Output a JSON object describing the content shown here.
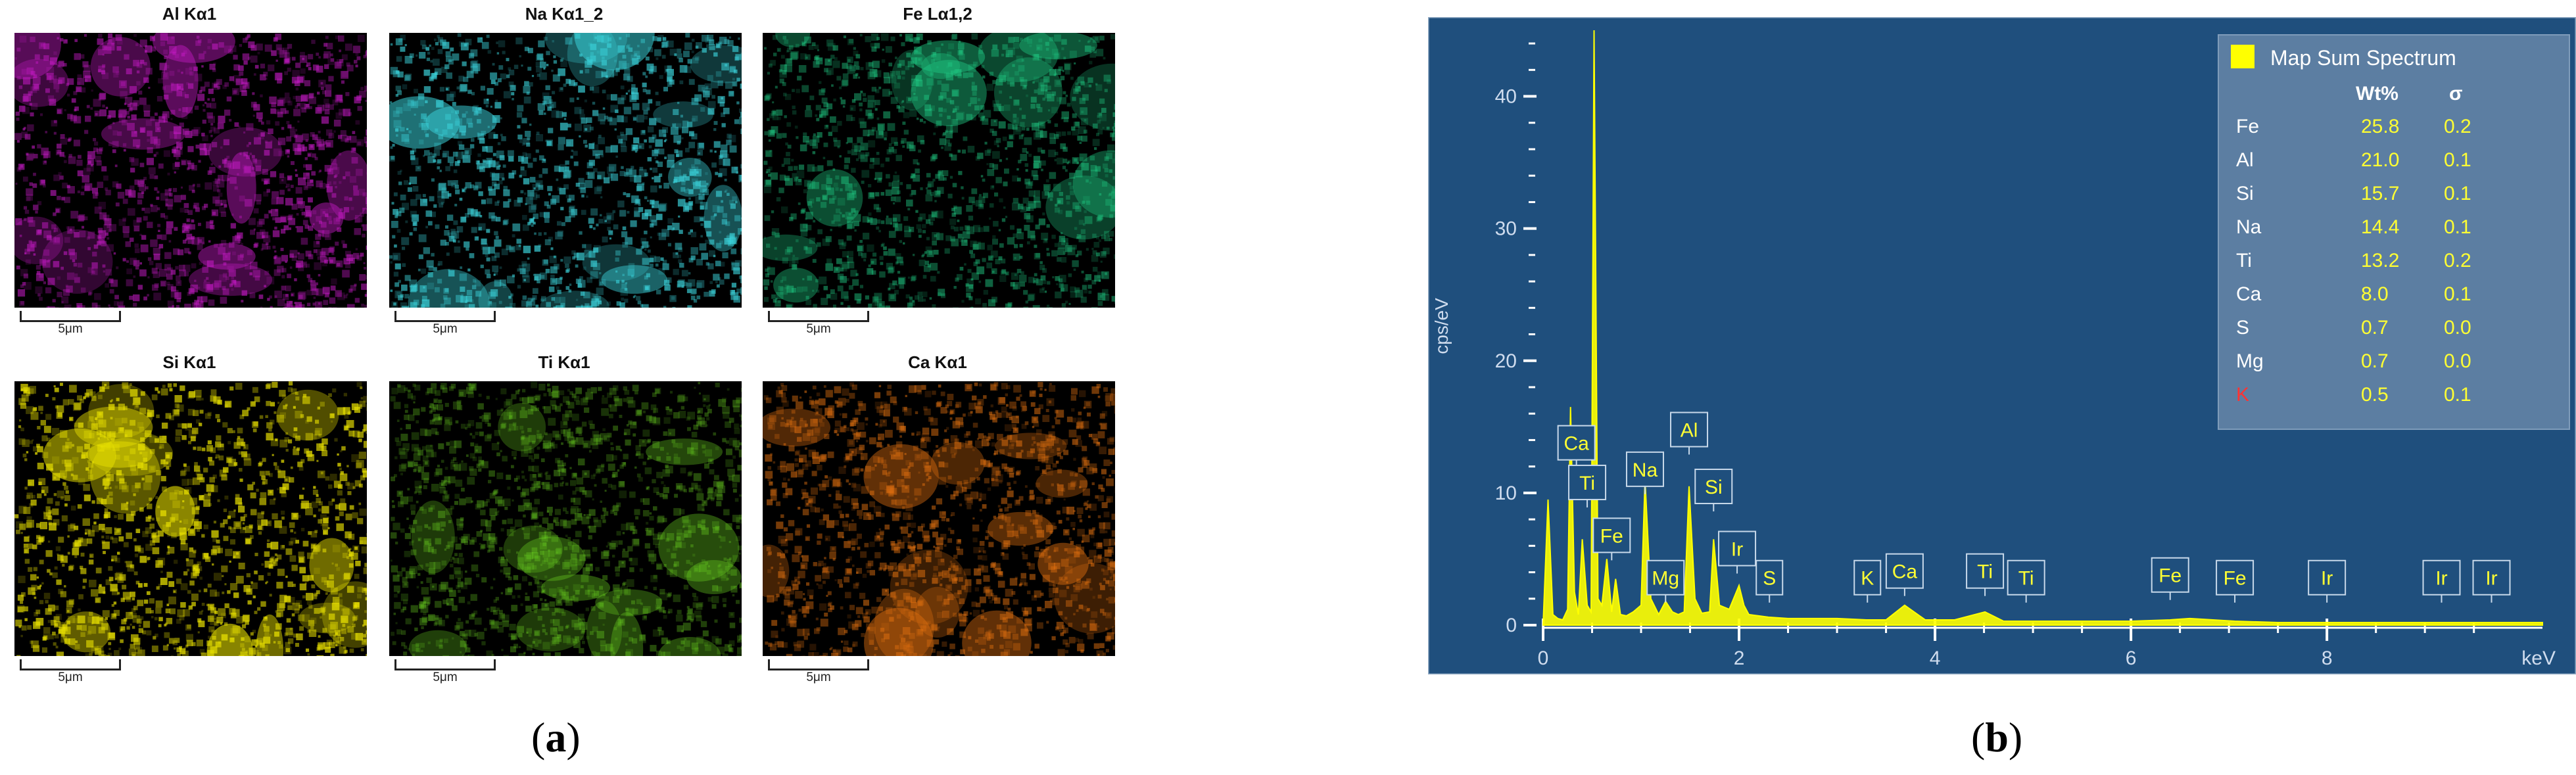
{
  "panel_a": {
    "label_open": "(",
    "label_letter": "a",
    "label_close": ")",
    "maps": [
      {
        "title": "Al Kα1",
        "color": "#c21ac2",
        "scale": "5μm"
      },
      {
        "title": "Na Kα1_2",
        "color": "#3ad0d8",
        "scale": "5μm"
      },
      {
        "title": "Fe Lα1,2",
        "color": "#1fc882",
        "scale": "5μm"
      },
      {
        "title": "Si Kα1",
        "color": "#e8e000",
        "scale": "5μm"
      },
      {
        "title": "Ti Kα1",
        "color": "#6ad020",
        "scale": "5μm"
      },
      {
        "title": "Ca Kα1",
        "color": "#e07010",
        "scale": "5μm"
      }
    ]
  },
  "panel_b": {
    "label_open": "(",
    "label_letter": "b",
    "label_close": ")"
  },
  "chart_data": {
    "type": "line",
    "title": "",
    "xlabel": "keV",
    "ylabel": "cps/eV",
    "xlim": [
      0,
      10.2
    ],
    "ylim": [
      0,
      45
    ],
    "x_ticks": [
      "0",
      "2",
      "4",
      "6",
      "8"
    ],
    "y_ticks": [
      "0",
      "10",
      "20",
      "30",
      "40"
    ],
    "grid": false,
    "background": "#1f4f7d",
    "line_color": "#ffff00",
    "series": [
      {
        "name": "Map Sum Spectrum",
        "x": [
          0,
          0.05,
          0.1,
          0.15,
          0.2,
          0.25,
          0.28,
          0.32,
          0.36,
          0.4,
          0.45,
          0.49,
          0.52,
          0.56,
          0.6,
          0.65,
          0.7,
          0.74,
          0.79,
          0.85,
          0.92,
          1.0,
          1.04,
          1.1,
          1.18,
          1.25,
          1.32,
          1.38,
          1.44,
          1.49,
          1.55,
          1.62,
          1.7,
          1.74,
          1.8,
          1.9,
          2.0,
          2.05,
          2.1,
          2.2,
          2.3,
          2.5,
          2.8,
          3.0,
          3.3,
          3.5,
          3.69,
          3.9,
          4.2,
          4.51,
          4.7,
          4.93,
          5.2,
          5.6,
          6.0,
          6.4,
          6.6,
          7.06,
          7.5,
          8.0,
          8.5,
          9.0,
          9.5,
          10.2
        ],
        "y": [
          0,
          9.5,
          0.8,
          0.5,
          0.4,
          1.2,
          16.5,
          2.5,
          0.8,
          6.5,
          1.5,
          1.0,
          45,
          2.0,
          1.5,
          5.0,
          1.0,
          3.5,
          0.8,
          0.7,
          1.0,
          1.5,
          11.0,
          2.0,
          0.8,
          1.8,
          1.0,
          0.8,
          1.0,
          10.5,
          2.0,
          0.9,
          1.0,
          6.5,
          1.5,
          1.2,
          3.0,
          1.5,
          0.8,
          0.7,
          0.6,
          0.5,
          0.5,
          0.5,
          0.4,
          0.4,
          1.5,
          0.4,
          0.4,
          1.0,
          0.3,
          0.3,
          0.3,
          0.3,
          0.3,
          0.4,
          0.5,
          0.3,
          0.2,
          0.2,
          0.2,
          0.2,
          0.2,
          0.2
        ]
      }
    ],
    "peak_labels": [
      {
        "text": "Ca",
        "x": 0.34,
        "y": 12.5
      },
      {
        "text": "Ti",
        "x": 0.45,
        "y": 9.5
      },
      {
        "text": "Fe",
        "x": 0.7,
        "y": 5.5
      },
      {
        "text": "Na",
        "x": 1.04,
        "y": 10.5
      },
      {
        "text": "Mg",
        "x": 1.25,
        "y": 2.3
      },
      {
        "text": "Al",
        "x": 1.49,
        "y": 13.5
      },
      {
        "text": "Si",
        "x": 1.74,
        "y": 9.2
      },
      {
        "text": "Ir",
        "x": 1.98,
        "y": 4.5
      },
      {
        "text": "S",
        "x": 2.31,
        "y": 2.3
      },
      {
        "text": "K",
        "x": 3.31,
        "y": 2.3
      },
      {
        "text": "Ca",
        "x": 3.69,
        "y": 2.8
      },
      {
        "text": "Ti",
        "x": 4.51,
        "y": 2.8
      },
      {
        "text": "Ti",
        "x": 4.93,
        "y": 2.3
      },
      {
        "text": "Fe",
        "x": 6.4,
        "y": 2.5
      },
      {
        "text": "Fe",
        "x": 7.06,
        "y": 2.3
      },
      {
        "text": "Ir",
        "x": 8.0,
        "y": 2.3
      },
      {
        "text": "Ir",
        "x": 9.17,
        "y": 2.3
      },
      {
        "text": "Ir",
        "x": 9.68,
        "y": 2.3
      }
    ],
    "legend": {
      "title": "Map Sum Spectrum",
      "col_wt": "Wt%",
      "col_sigma": "σ",
      "rows": [
        {
          "el": "Fe",
          "wt": "25.8",
          "sigma": "0.2"
        },
        {
          "el": "Al",
          "wt": "21.0",
          "sigma": "0.1"
        },
        {
          "el": "Si",
          "wt": "15.7",
          "sigma": "0.1"
        },
        {
          "el": "Na",
          "wt": "14.4",
          "sigma": "0.1"
        },
        {
          "el": "Ti",
          "wt": "13.2",
          "sigma": "0.2"
        },
        {
          "el": "Ca",
          "wt": "8.0",
          "sigma": "0.1"
        },
        {
          "el": "S",
          "wt": "0.7",
          "sigma": "0.0"
        },
        {
          "el": "Mg",
          "wt": "0.7",
          "sigma": "0.0"
        },
        {
          "el": "K",
          "wt": "0.5",
          "sigma": "0.1",
          "flagged": true
        }
      ]
    }
  }
}
